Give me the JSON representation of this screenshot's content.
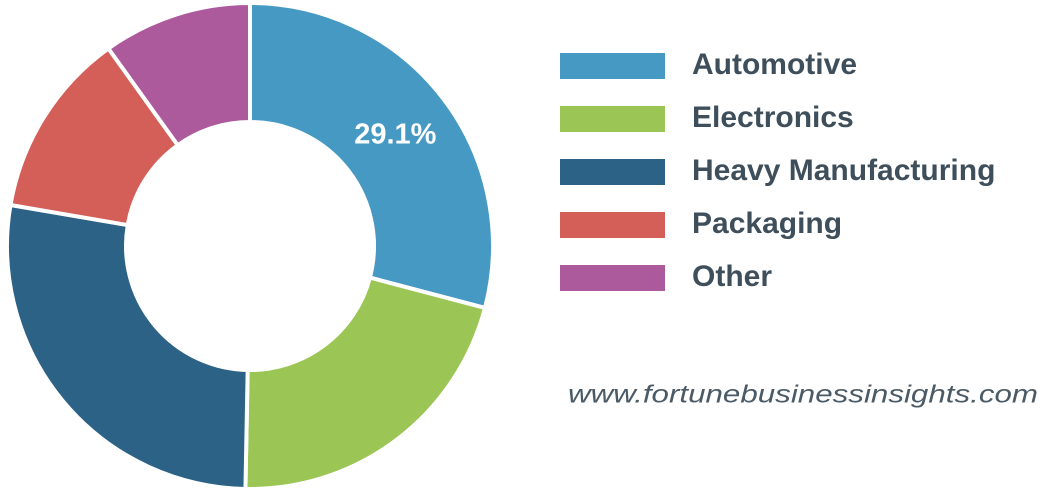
{
  "chart_data": {
    "type": "donut",
    "categories": [
      "Automotive",
      "Electronics",
      "Heavy Manufacturing",
      "Packaging",
      "Other"
    ],
    "values": [
      29.1,
      21.2,
      27.4,
      12.4,
      9.9
    ],
    "value_labels": [
      "29.1%",
      null,
      null,
      null,
      null
    ],
    "colors": [
      "#4699c3",
      "#9bc554",
      "#2b6286",
      "#d45f58",
      "#ad5a9d"
    ],
    "source": "www.fortunebusinessinsights.com"
  }
}
